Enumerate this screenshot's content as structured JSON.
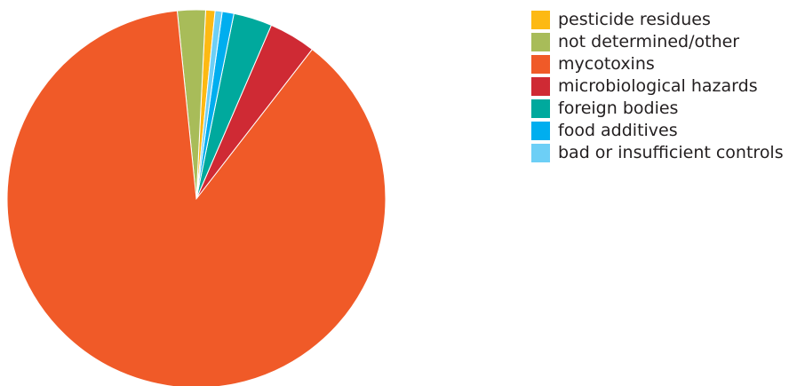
{
  "chart_data": {
    "type": "pie",
    "title": "",
    "legend_position": "right",
    "slices": [
      {
        "label": "pesticide residues",
        "value": 0.8,
        "color": "#fdb913"
      },
      {
        "label": "not determined/other",
        "value": 2.4,
        "color": "#a8bc59"
      },
      {
        "label": "mycotoxins",
        "value": 87.9,
        "color": "#f05a28"
      },
      {
        "label": "microbiological hazards",
        "value": 4.0,
        "color": "#cf2a34"
      },
      {
        "label": "foreign bodies",
        "value": 3.3,
        "color": "#00a99d"
      },
      {
        "label": "food additives",
        "value": 1.0,
        "color": "#00aeef"
      },
      {
        "label": "bad or insufficient controls",
        "value": 0.6,
        "color": "#6dcff6"
      }
    ]
  }
}
